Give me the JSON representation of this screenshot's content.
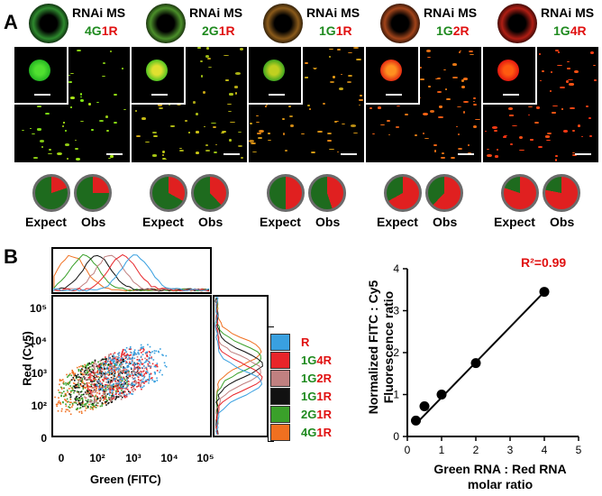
{
  "panel_a": {
    "letter": "A",
    "conditions": [
      {
        "title": "RNAi MS",
        "g": "4G",
        "r": "1R",
        "pie_expect_red": 0.2,
        "pie_obs_red": 0.25,
        "tint": "#2e8a2e"
      },
      {
        "title": "RNAi MS",
        "g": "2G",
        "r": "1R",
        "pie_expect_red": 0.33,
        "pie_obs_red": 0.38,
        "tint": "#4b8f2a"
      },
      {
        "title": "RNAi MS",
        "g": "1G",
        "r": "1R",
        "pie_expect_red": 0.5,
        "pie_obs_red": 0.45,
        "tint": "#8a5a1a"
      },
      {
        "title": "RNAi MS",
        "g": "1G",
        "r": "2R",
        "pie_expect_red": 0.67,
        "pie_obs_red": 0.62,
        "tint": "#a2441a"
      },
      {
        "title": "RNAi MS",
        "g": "1G",
        "r": "4R",
        "pie_expect_red": 0.8,
        "pie_obs_red": 0.78,
        "tint": "#b01e14"
      }
    ],
    "pie_labels": {
      "expect": "Expect",
      "obs": "Obs"
    },
    "colors": {
      "pie_green": "#1e6b1e",
      "pie_red": "#e02020"
    }
  },
  "panel_b": {
    "letter": "B",
    "flow": {
      "ylabel": "Red (Cy5)",
      "xlabel": "Green (FITC)",
      "y_ticks": [
        "10⁵",
        "10⁴",
        "10³",
        "10²",
        "0"
      ],
      "x_ticks": [
        "0",
        "10²",
        "10³",
        "10⁴",
        "10⁵"
      ],
      "legend": [
        {
          "label": "R",
          "swatch": "#39a0e0",
          "parts": [
            {
              "t": "R",
              "c": "#e01010"
            }
          ]
        },
        {
          "label": "1G4R",
          "swatch": "#e8252a",
          "parts": [
            {
              "t": "1G",
              "c": "#1f8a1f"
            },
            {
              "t": "4R",
              "c": "#e01010"
            }
          ]
        },
        {
          "label": "1G2R",
          "swatch": "#c08080",
          "parts": [
            {
              "t": "1G",
              "c": "#1f8a1f"
            },
            {
              "t": "2R",
              "c": "#e01010"
            }
          ]
        },
        {
          "label": "1G1R",
          "swatch": "#111111",
          "parts": [
            {
              "t": "1G",
              "c": "#1f8a1f"
            },
            {
              "t": "1R",
              "c": "#e01010"
            }
          ]
        },
        {
          "label": "2G1R",
          "swatch": "#3aa02a",
          "parts": [
            {
              "t": "2G",
              "c": "#1f8a1f"
            },
            {
              "t": "1R",
              "c": "#e01010"
            }
          ]
        },
        {
          "label": "4G1R",
          "swatch": "#f07020",
          "parts": [
            {
              "t": "4G",
              "c": "#1f8a1f"
            },
            {
              "t": "1R",
              "c": "#e01010"
            }
          ]
        }
      ]
    },
    "regression": {
      "r2": "R²=0.99",
      "ylabel_line1": "Normalized FITC : Cy5",
      "ylabel_line2": "Fluorescence ratio",
      "xlabel_line1": "Green RNA : Red RNA",
      "xlabel_line2": "molar ratio"
    }
  },
  "chart_data": {
    "type": "scatter",
    "x": [
      0.25,
      0.5,
      1,
      2,
      4
    ],
    "y": [
      0.38,
      0.72,
      1.0,
      1.75,
      3.45
    ],
    "fit_line": {
      "x": [
        0.25,
        4
      ],
      "y": [
        0.3,
        3.45
      ]
    },
    "xlim": [
      0,
      5
    ],
    "ylim": [
      0,
      4
    ],
    "x_ticks": [
      0,
      1,
      2,
      3,
      4,
      5
    ],
    "y_ticks": [
      0,
      1,
      2,
      3,
      4
    ],
    "xlabel": "Green RNA : Red RNA molar ratio",
    "ylabel": "Normalized FITC : Cy5 Fluorescence ratio",
    "annotation": "R²=0.99",
    "grid": false
  }
}
